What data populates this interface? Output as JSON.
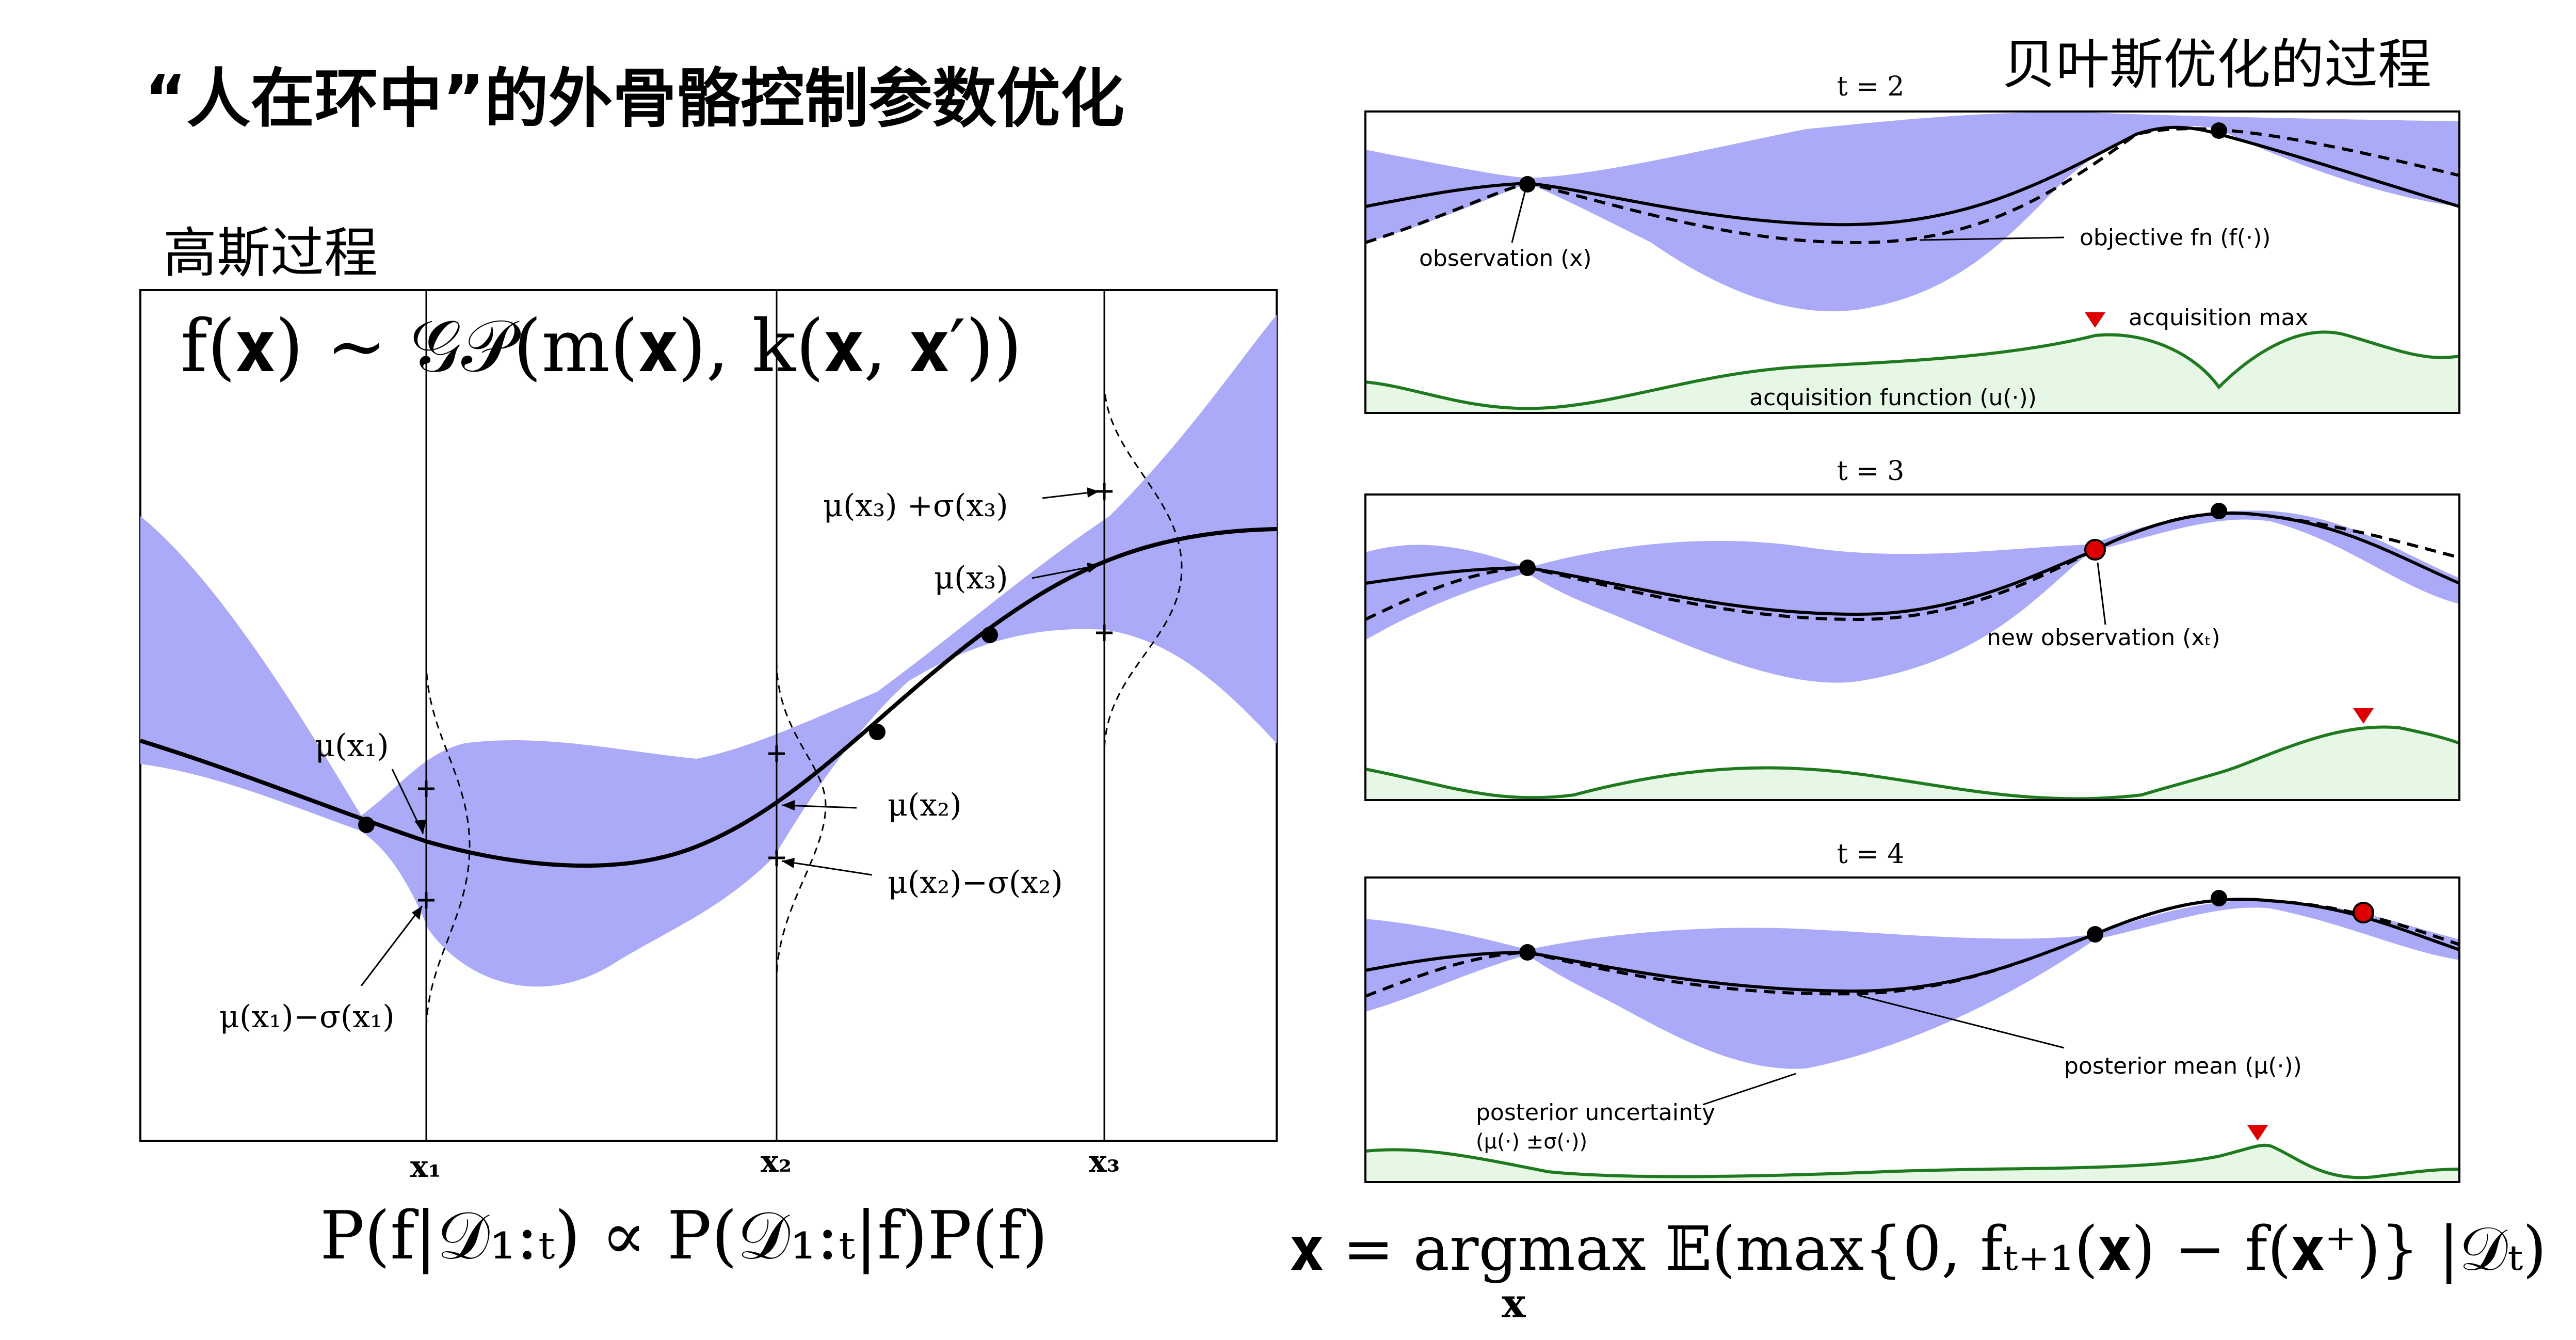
{
  "slide": {
    "title": "“人在环中”的外骨骼控制参数优化",
    "gp_heading": "高斯过程",
    "bo_heading": "贝叶斯优化的过程"
  },
  "gp_plot": {
    "formula_prior": "f(𝐱) ∼ 𝒢𝒫(m(𝐱), k(𝐱, 𝐱′))",
    "formula_posterior": "P(f|𝒟₁:ₜ) ∝ P(𝒟₁:ₜ|f)P(f)",
    "x_ticks": [
      "x₁",
      "x₂",
      "x₃"
    ],
    "labels": {
      "mu_x1": "μ(x₁)",
      "mu_x1_minus_sigma": "μ(x₁)−σ(x₁)",
      "mu_x2": "μ(x₂)",
      "mu_x2_minus_sigma": "μ(x₂)−σ(x₂)",
      "mu_x3_plus_sigma": "μ(x₃) +σ(x₃)",
      "mu_x3": "μ(x₃)"
    },
    "colors": {
      "band": "#aaaaf8",
      "mean": "#000000"
    }
  },
  "bo_panels": [
    {
      "title": "t = 2",
      "annotations": {
        "observation": "observation (x)",
        "objective": "objective fn (f(·))",
        "acq_max": "acquisition max",
        "acq_fn": "acquisition function (u(·))"
      }
    },
    {
      "title": "t = 3",
      "annotations": {
        "new_observation": "new observation (xₜ)"
      }
    },
    {
      "title": "t = 4",
      "annotations": {
        "posterior_mean": "posterior mean (μ(·))",
        "posterior_uncertainty": "posterior uncertainty",
        "posterior_uncertainty_sub": "(μ(·) ±σ(·))"
      }
    }
  ],
  "bo_colors": {
    "band": "#aaaaf8",
    "acq_line": "#1f7a1f",
    "acq_fill": "#e6f7e6",
    "marker_red": "#dd0000"
  },
  "acquisition_formula": {
    "main": "𝐱 = argmax 𝔼(max{0, fₜ₊₁(𝐱) − f(𝐱⁺)} |𝒟ₜ)",
    "sub": "x"
  }
}
